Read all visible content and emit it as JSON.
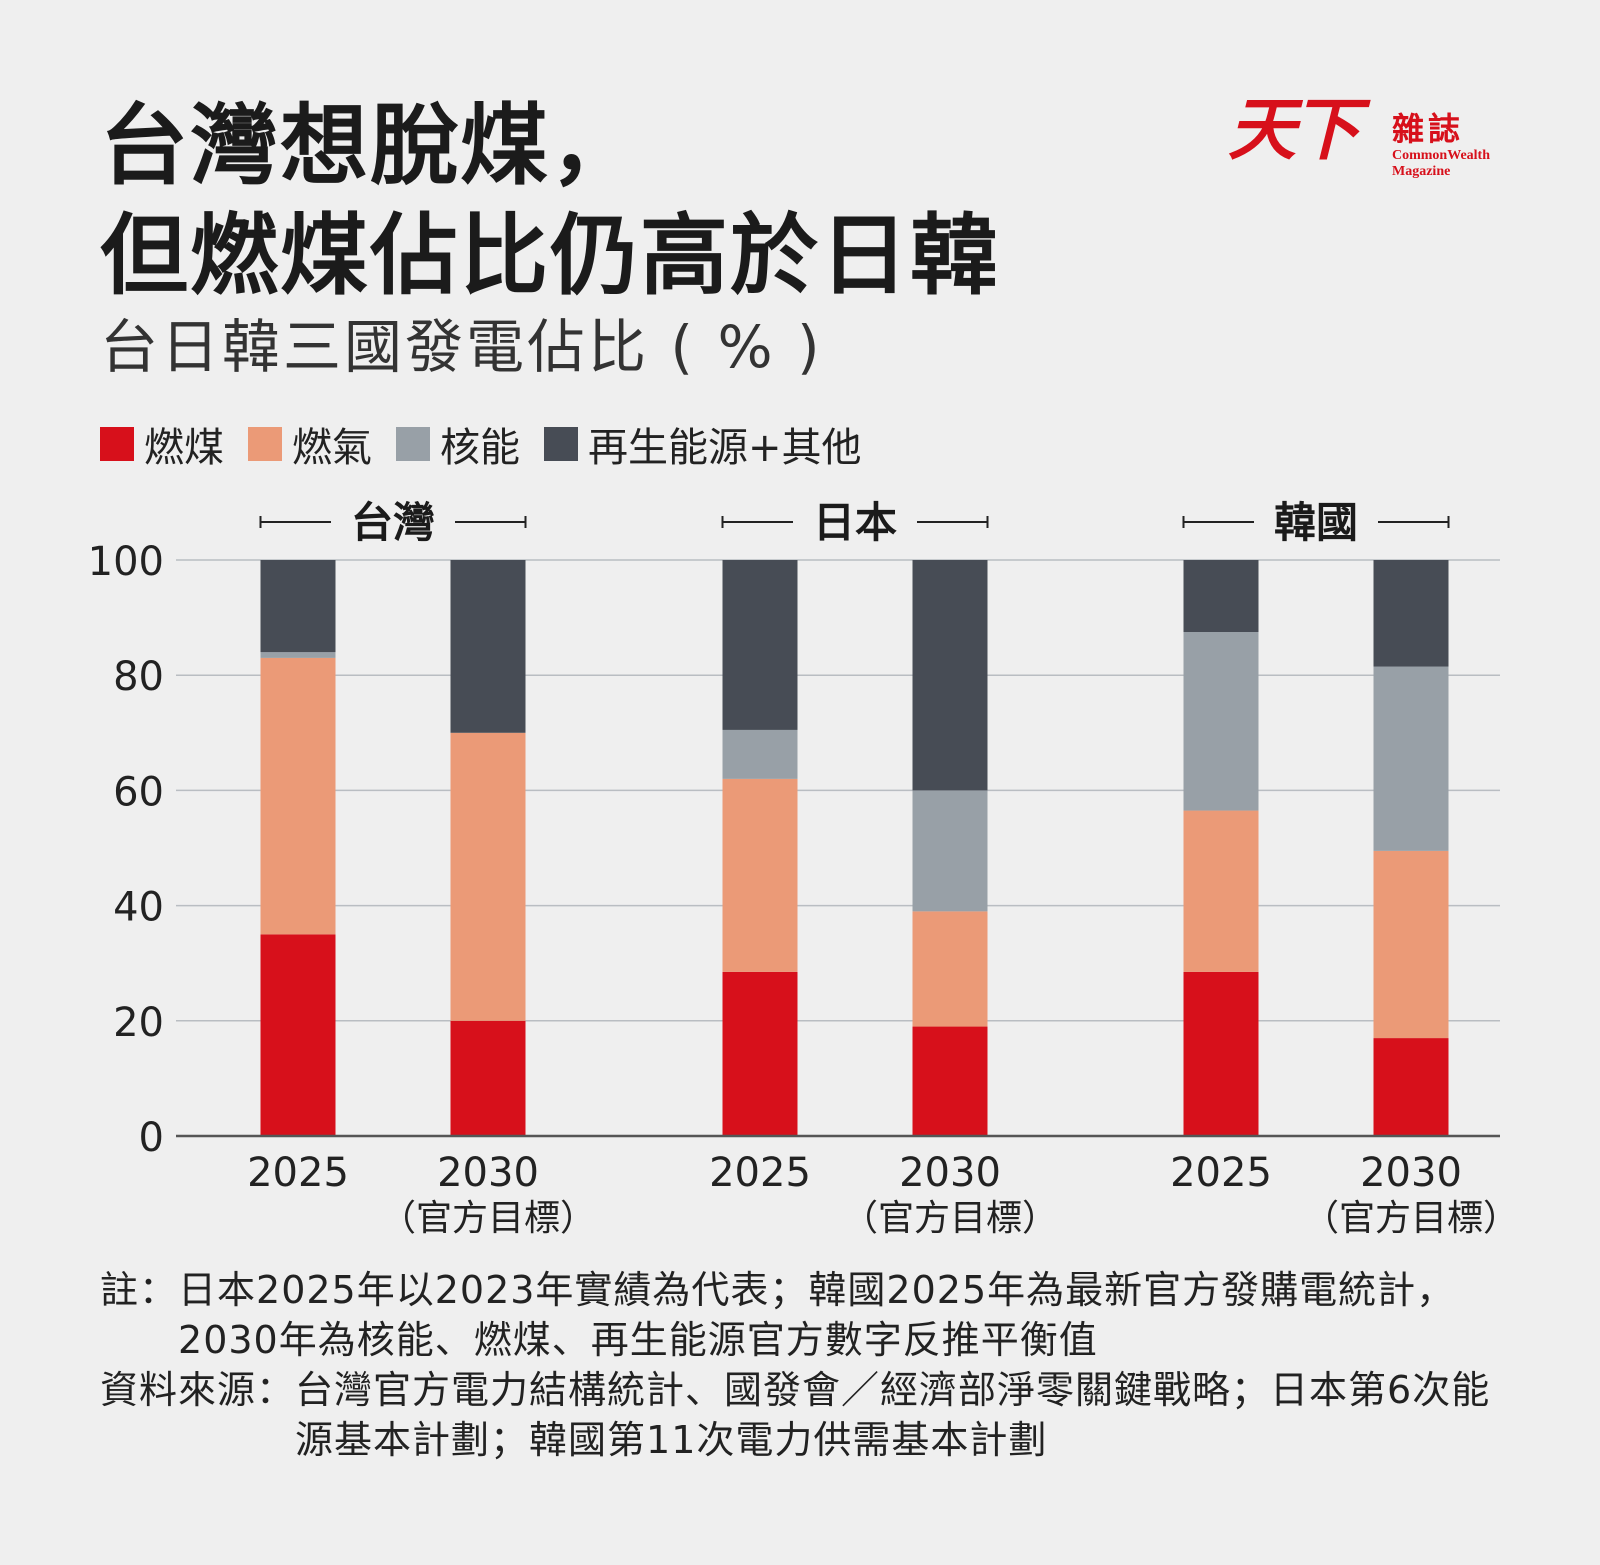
{
  "header": {
    "title_line1": "台灣想脫煤，",
    "title_line2": "但燃煤佔比仍高於日韓",
    "subtitle": "台日韓三國發電佔比 ( % )"
  },
  "logo": {
    "mark": "天下",
    "zazhi": "雜誌",
    "en_line1": "CommonWealth",
    "en_line2": "Magazine"
  },
  "colors": {
    "coal": "#d7101b",
    "gas": "#eb9a77",
    "nuclear": "#98a0a7",
    "renew": "#474c55",
    "grid": "#b9bdc2",
    "axis": "#555555"
  },
  "chart_data": {
    "type": "bar",
    "stacked": true,
    "ylim": [
      0,
      100
    ],
    "yticks": [
      0,
      20,
      40,
      60,
      80,
      100
    ],
    "grid": true,
    "legend_placement": "top-left",
    "groups": [
      {
        "name": "台灣",
        "bars": [
          {
            "label": "2025",
            "sublabel": "",
            "values": [
              35,
              48,
              1,
              16
            ]
          },
          {
            "label": "2030",
            "sublabel": "（官方目標）",
            "values": [
              20,
              50,
              0,
              30
            ]
          }
        ]
      },
      {
        "name": "日本",
        "bars": [
          {
            "label": "2025",
            "sublabel": "",
            "values": [
              28.5,
              33.5,
              8.5,
              29.5
            ]
          },
          {
            "label": "2030",
            "sublabel": "（官方目標）",
            "values": [
              19,
              20,
              21,
              40
            ]
          }
        ]
      },
      {
        "name": "韓國",
        "bars": [
          {
            "label": "2025",
            "sublabel": "",
            "values": [
              28.5,
              28,
              31,
              12.5
            ]
          },
          {
            "label": "2030",
            "sublabel": "（官方目標）",
            "values": [
              17,
              32.5,
              32,
              18.5
            ]
          }
        ]
      }
    ],
    "series": [
      {
        "name": "燃煤",
        "color": "#d7101b"
      },
      {
        "name": "燃氣",
        "color": "#eb9a77"
      },
      {
        "name": "核能",
        "color": "#98a0a7"
      },
      {
        "name": "再生能源+其他",
        "color": "#474c55"
      }
    ]
  },
  "notes": {
    "note_label": "註：",
    "note_text": "日本2025年以2023年實績為代表；韓國2025年為最新官方發購電統計，2030年為核能、燃煤、再生能源官方數字反推平衡值",
    "source_label": "資料來源：",
    "source_text": "台灣官方電力結構統計、國發會／經濟部淨零關鍵戰略；日本第6次能源基本計劃；韓國第11次電力供需基本計劃"
  }
}
